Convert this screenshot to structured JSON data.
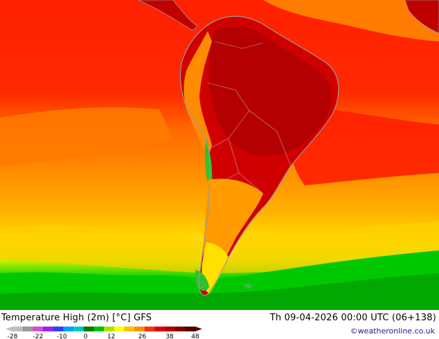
{
  "title": "Temperature High (2m) [°C] GFS",
  "datetime": "Th 09-04-2026 00:00 UTC (06+138)",
  "credit": "©weatheronline.co.uk",
  "legend": {
    "ticks": [
      "-28",
      "-22",
      "-10",
      "0",
      "12",
      "26",
      "38",
      "48"
    ],
    "colors": [
      "#bdbdbd",
      "#9a9a9a",
      "#d84ad8",
      "#a020f0",
      "#3040ff",
      "#00a0ff",
      "#00c8c8",
      "#007a00",
      "#00c000",
      "#a8e000",
      "#ffff00",
      "#ffc000",
      "#ff8c00",
      "#ff3000",
      "#e00000",
      "#b00000",
      "#800000",
      "#500000"
    ]
  },
  "colors": {
    "ocean_dark_red": "#ff1a00",
    "ocean_orange": "#ff8c00",
    "ocean_yellow": "#ffe600",
    "ocean_green": "#00c800",
    "land_dark_red": "#c00000",
    "coast": "#a0a0a0"
  }
}
